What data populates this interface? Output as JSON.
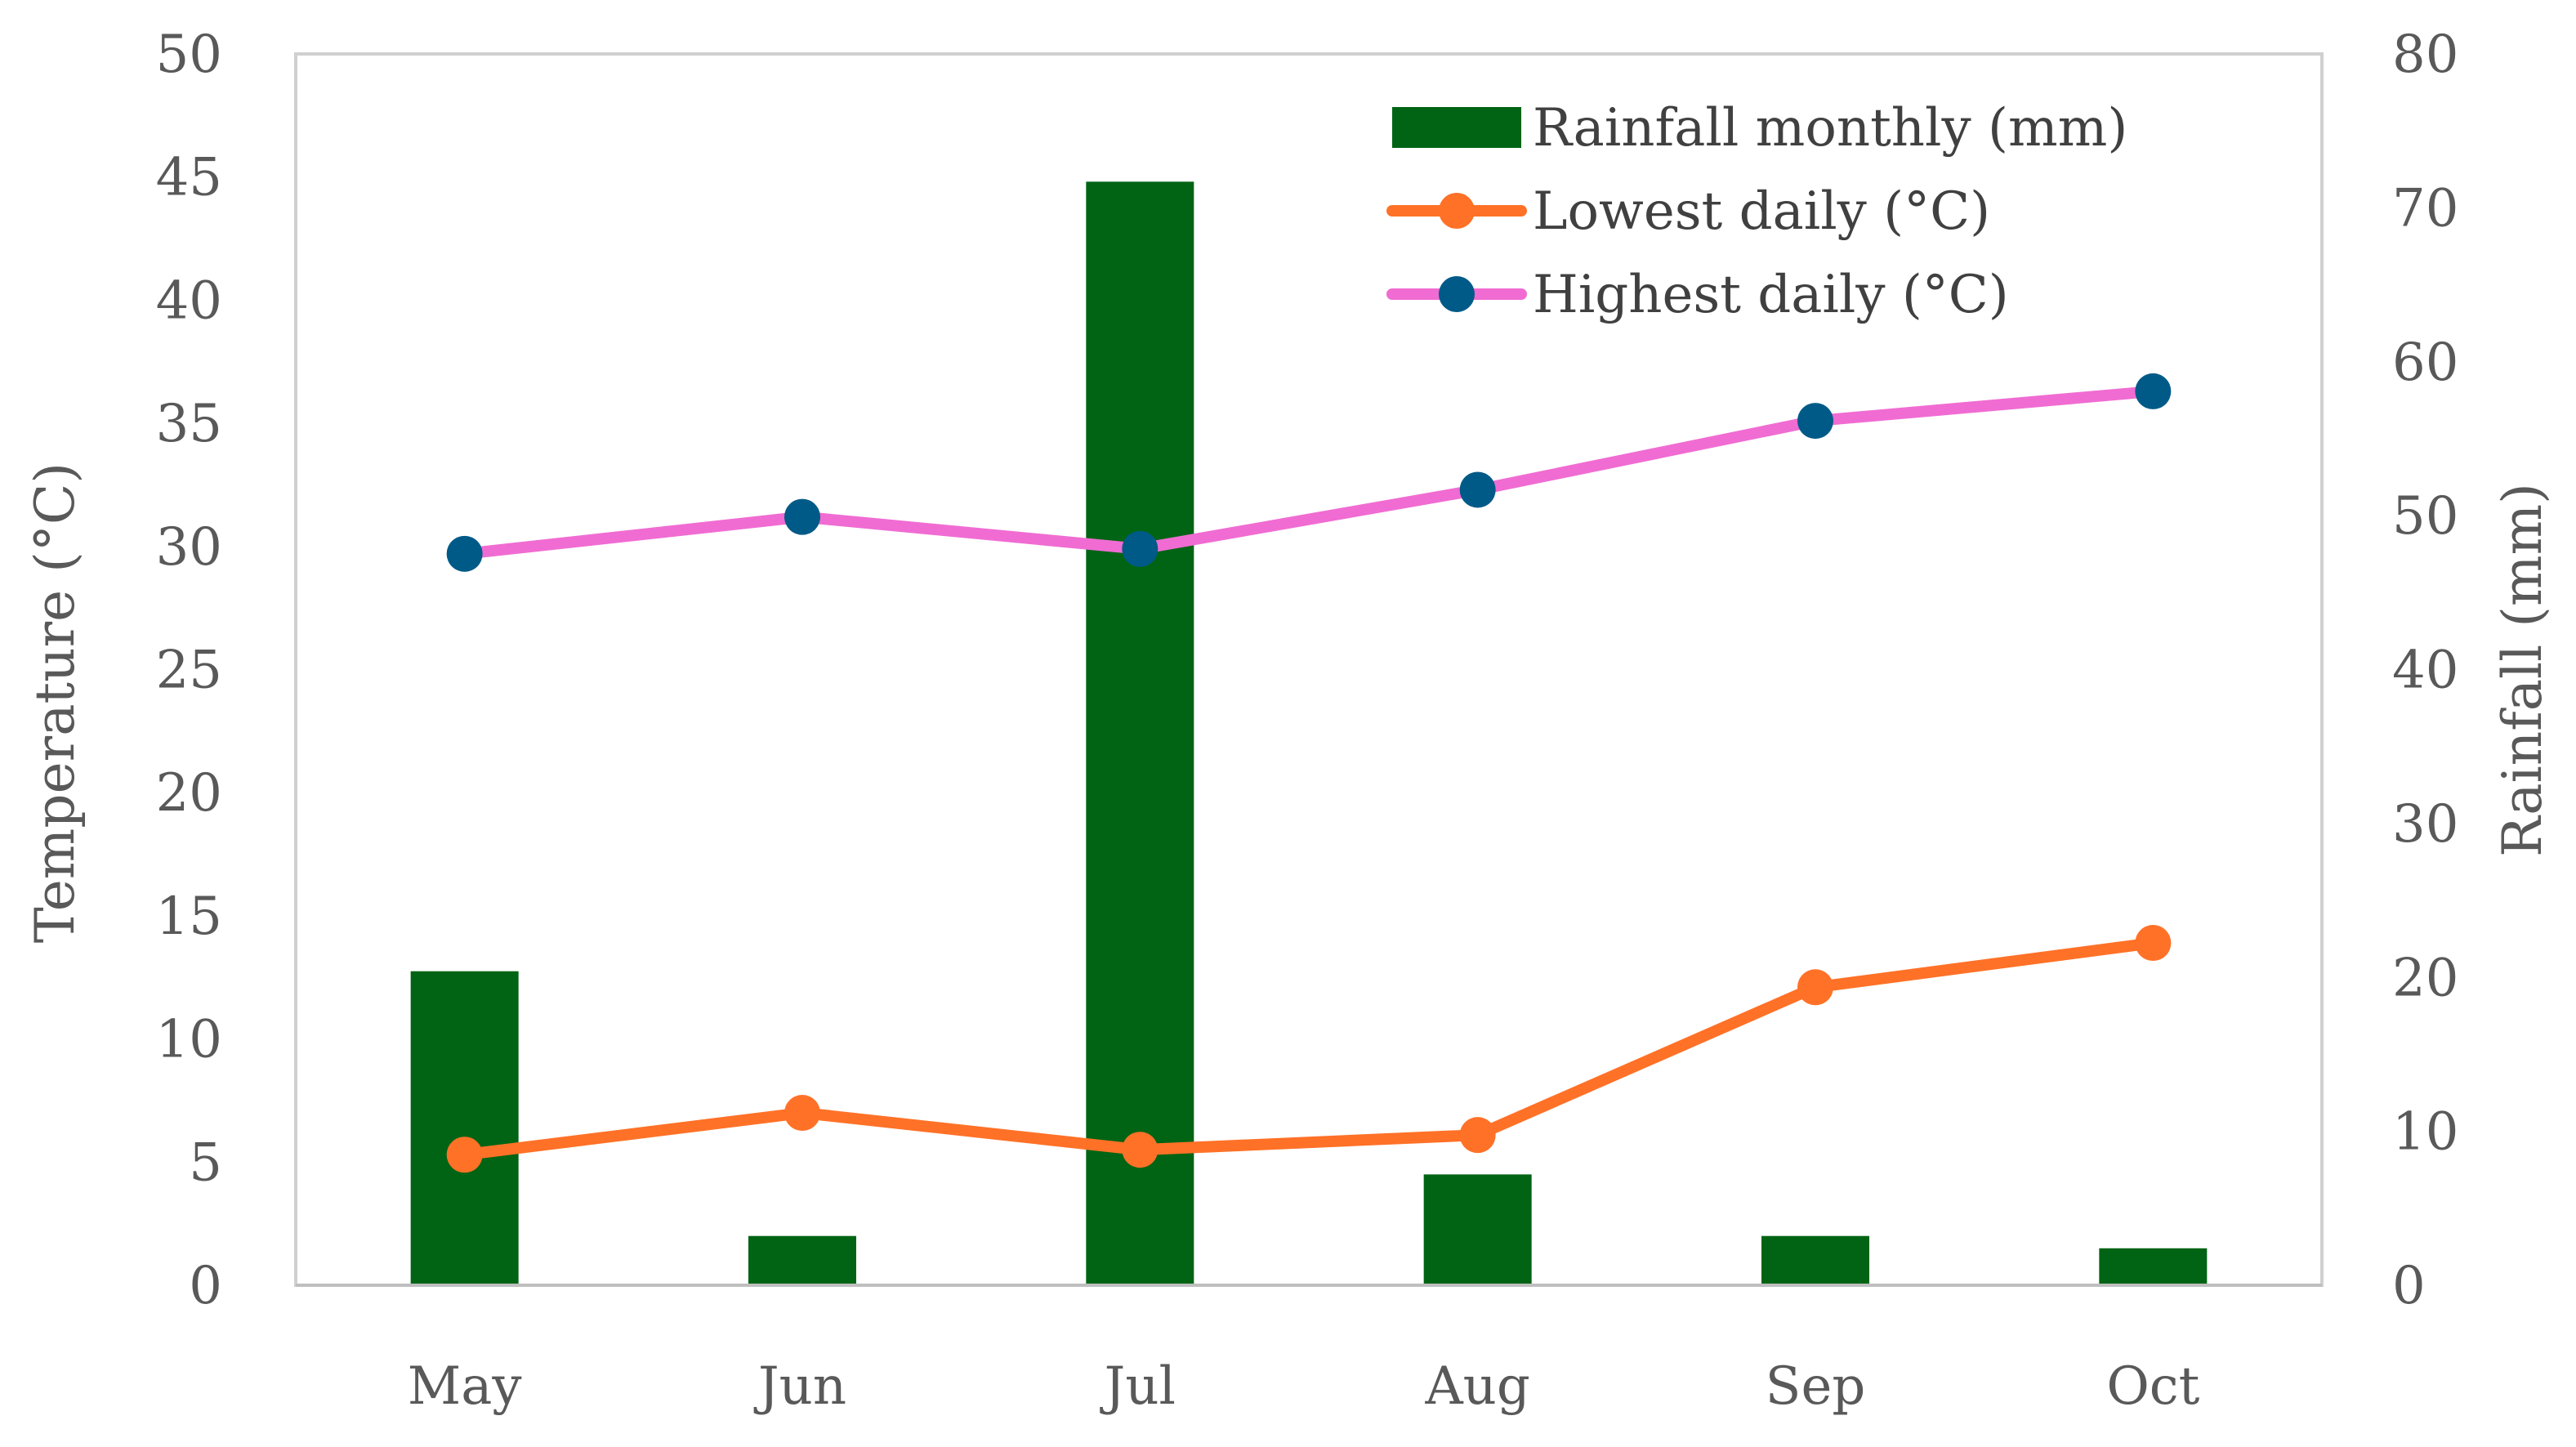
{
  "chart_data": {
    "type": "bar+line",
    "categories": [
      "May",
      "Jun",
      "Jul",
      "Aug",
      "Sep",
      "Oct"
    ],
    "y_left": {
      "label": "Temperature (°C)",
      "min": 0,
      "max": 50,
      "step": 5,
      "ticks": [
        "0",
        "5",
        "10",
        "15",
        "20",
        "25",
        "30",
        "35",
        "40",
        "45",
        "50"
      ]
    },
    "y_right": {
      "label": "Rainfall (mm)",
      "min": 0,
      "max": 80,
      "step": 10,
      "ticks": [
        "0",
        "10",
        "20",
        "30",
        "40",
        "50",
        "60",
        "70",
        "80"
      ]
    },
    "series": [
      {
        "name": "Rainfall monthly (mm)",
        "type": "bar",
        "axis": "right",
        "color": "#006414",
        "values": [
          20.4,
          3.2,
          71.7,
          7.2,
          3.2,
          2.4
        ]
      },
      {
        "name": "Lowest daily (°C)",
        "type": "line",
        "axis": "left",
        "color": "#ff7127",
        "marker_color": "#ff7127",
        "values": [
          5.3,
          7.0,
          5.5,
          6.1,
          12.1,
          13.9
        ]
      },
      {
        "name": "Highest daily (°C)",
        "type": "line",
        "axis": "left",
        "color": "#f06cd2",
        "marker_color": "#005a87",
        "values": [
          29.7,
          31.2,
          29.9,
          32.3,
          35.1,
          36.3
        ]
      }
    ],
    "legend_position": "top-right",
    "grid": false
  }
}
